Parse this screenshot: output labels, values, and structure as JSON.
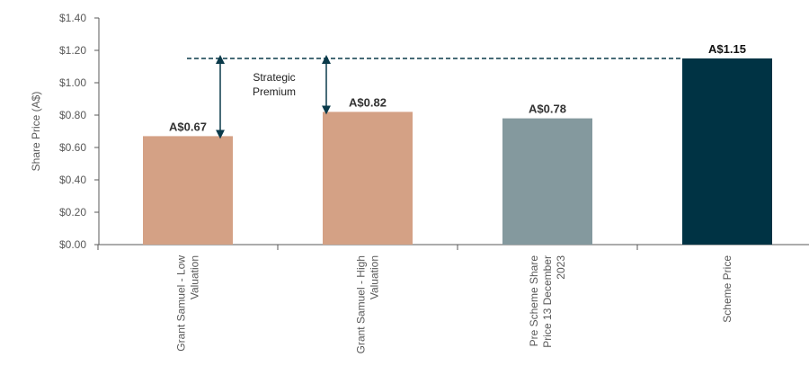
{
  "chart_data": {
    "type": "bar",
    "title": "",
    "xlabel": "",
    "ylabel": "Share Price (A$)",
    "ylim": [
      0,
      1.4
    ],
    "yticks": [
      0,
      0.2,
      0.4,
      0.6,
      0.8,
      1.0,
      1.2,
      1.4
    ],
    "ytick_labels": [
      "$0.00",
      "$0.20",
      "$0.40",
      "$0.60",
      "$0.80",
      "$1.00",
      "$1.20",
      "$1.40"
    ],
    "grid": false,
    "legend": "none",
    "categories": [
      [
        "Grant Samuel - Low",
        "Valuation"
      ],
      [
        "Grant Samuel - High",
        "Valuation"
      ],
      [
        "Pre Scheme Share",
        "Price 13 December",
        "2023"
      ],
      [
        "Scheme Price"
      ]
    ],
    "values": [
      0.67,
      0.82,
      0.78,
      1.15
    ],
    "data_labels": [
      "A$0.67",
      "A$0.82",
      "A$0.78",
      "A$1.15"
    ],
    "bar_colors": [
      "#D4A185",
      "#D4A185",
      "#84999E",
      "#003344"
    ],
    "data_label_colors": [
      "#333333",
      "#333333",
      "#333333",
      "#111111"
    ],
    "reference_line": {
      "value": 1.15,
      "style": "dashed",
      "color": "#0A3A4A"
    },
    "annotation": {
      "lines": [
        "Strategic",
        "Premium"
      ],
      "arrow_color": "#0A3A4A",
      "applies_to": [
        0,
        1
      ]
    },
    "axis_color": "#595959",
    "text_color": "#595959"
  }
}
